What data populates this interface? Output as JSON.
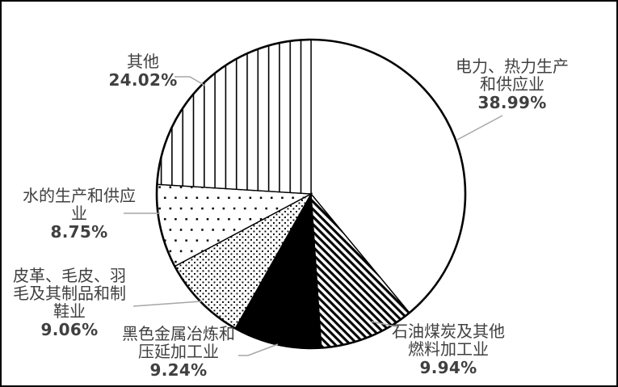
{
  "chart_data": {
    "type": "pie",
    "direction": "clockwise",
    "start_angle_deg": 0,
    "legend_position": "none",
    "unit": "%",
    "slices": [
      {
        "name": "电力、热力生产和供应业",
        "value": 38.99,
        "percent_label": "38.99%",
        "pattern": "plain-white",
        "label_lines": [
          "电力、热力生产",
          "和供应业"
        ]
      },
      {
        "name": "石油煤炭及其他燃料加工业",
        "value": 9.94,
        "percent_label": "9.94%",
        "pattern": "bold-diagonal-stripes",
        "label_lines": [
          "石油煤炭及其他",
          "燃料加工业"
        ]
      },
      {
        "name": "黑色金属冶炼和压延加工业",
        "value": 9.24,
        "percent_label": "9.24%",
        "pattern": "solid-black",
        "label_lines": [
          "黑色金属冶炼和",
          "压延加工业"
        ]
      },
      {
        "name": "皮革、毛皮、羽毛及其制品和制鞋业",
        "value": 9.06,
        "percent_label": "9.06%",
        "pattern": "fine-dotted-diagonal",
        "label_lines": [
          "皮革、毛皮、羽",
          "毛及其制品和制",
          "鞋业"
        ]
      },
      {
        "name": "水的生产和供应业",
        "value": 8.75,
        "percent_label": "8.75%",
        "pattern": "dots",
        "label_lines": [
          "水的生产和供应",
          "业"
        ]
      },
      {
        "name": "其他",
        "value": 24.02,
        "percent_label": "24.02%",
        "pattern": "vertical-lines",
        "label_lines": [
          "其他"
        ]
      }
    ],
    "colors": {
      "slice_stroke": "#000000",
      "background": "#ffffff",
      "label_text": "#404040",
      "leader_line": "#a6a6a6"
    }
  }
}
